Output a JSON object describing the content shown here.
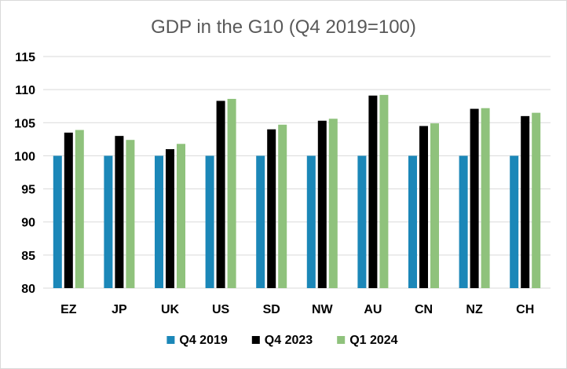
{
  "chart_data": {
    "type": "bar",
    "title": "GDP in the G10 (Q4 2019=100)",
    "categories": [
      "EZ",
      "JP",
      "UK",
      "US",
      "SD",
      "NW",
      "AU",
      "CN",
      "NZ",
      "CH"
    ],
    "series": [
      {
        "name": "Q4 2019",
        "color": "#1b87b8",
        "values": [
          100,
          100,
          100,
          100,
          100,
          100,
          100,
          100,
          100,
          100
        ]
      },
      {
        "name": "Q4 2023",
        "color": "#000000",
        "values": [
          103.5,
          103.0,
          101.0,
          108.3,
          104.0,
          105.3,
          109.1,
          104.5,
          107.1,
          106.0
        ]
      },
      {
        "name": "Q1 2024",
        "color": "#8fc27c",
        "values": [
          103.9,
          102.4,
          101.8,
          108.6,
          104.7,
          105.6,
          109.2,
          104.9,
          107.2,
          106.5
        ]
      }
    ],
    "ylim": [
      80,
      115
    ],
    "yticks": [
      "80",
      "85",
      "90",
      "95",
      "100",
      "105",
      "110",
      "115"
    ],
    "grid": true,
    "legend_position": "bottom"
  }
}
